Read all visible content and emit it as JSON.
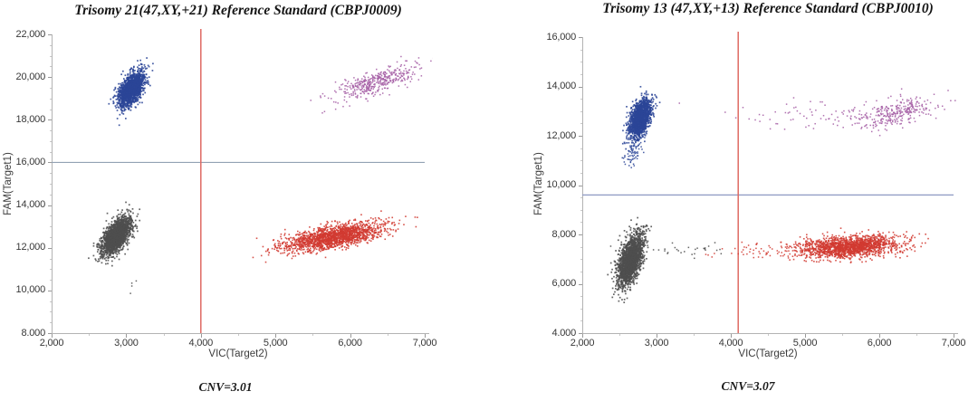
{
  "figure": {
    "background": "#ffffff",
    "description_colors": {
      "fam_positive": "#2b4597",
      "vic_positive": "#d23a31",
      "double_positive": "#a55fa5",
      "negative": "#4e4e4e",
      "vertical_threshold": "#df6a63"
    }
  },
  "chart_data": [
    {
      "type": "scatter",
      "title": "Trisomy 21(47,XY,+21) Reference Standard (CBPJ0009)",
      "annotation": "CNV=3.01",
      "xlabel": "VIC(Target2)",
      "ylabel": "FAM(Target1)",
      "xlim": [
        2000,
        7000
      ],
      "ylim": [
        8000,
        22000
      ],
      "xtick_values": [
        2000,
        3000,
        4000,
        5000,
        6000,
        7000
      ],
      "xtick_labels": [
        "2,000",
        "3,000",
        "4,000",
        "5,000",
        "6,000",
        "7,000"
      ],
      "ytick_values": [
        22000,
        20000,
        18000,
        16000,
        14000,
        12000,
        10000,
        8000
      ],
      "ytick_labels": [
        "22,000",
        "20,000",
        "18,000",
        "16,000",
        "14,000",
        "12,000",
        "10,000",
        "8.000"
      ],
      "grid": false,
      "legend": "none",
      "threshold_lines": {
        "vertical_x": 4000,
        "vertical_color": "#df6a63",
        "horizontal_y": 16000,
        "horizontal_color": "#93a2b4"
      },
      "clusters": [
        {
          "label": "fam-positive",
          "color": "#2b4597",
          "n": 1700,
          "cx": 3070,
          "cy": 19450,
          "sx": 85,
          "sy": 400,
          "rho": 0.55,
          "size": 1.7
        },
        {
          "label": "double-positive",
          "color": "#a55fa5",
          "n": 420,
          "cx": 6350,
          "cy": 19750,
          "sx": 290,
          "sy": 420,
          "rho": 0.75,
          "size": 1.5
        },
        {
          "label": "negative",
          "color": "#4e4e4e",
          "n": 2000,
          "cx": 2870,
          "cy": 12550,
          "sx": 95,
          "sy": 430,
          "rho": 0.6,
          "size": 1.7
        },
        {
          "label": "vic-positive",
          "color": "#d23a31",
          "n": 1700,
          "cx": 5780,
          "cy": 12500,
          "sx": 340,
          "sy": 340,
          "rho": 0.62,
          "size": 1.6
        },
        {
          "label": "negative-stray",
          "color": "#4e4e4e",
          "n": 4,
          "cx": 3020,
          "cy": 10250,
          "sx": 140,
          "sy": 280,
          "rho": 0,
          "size": 1.5
        }
      ]
    },
    {
      "type": "scatter",
      "title": "Trisomy 13 (47,XY,+13) Reference Standard (CBPJ0010)",
      "annotation": "CNV=3.07",
      "xlabel": "VIC(Target2)",
      "ylabel": "FAM(Target1)",
      "xlim": [
        2000,
        7000
      ],
      "ylim": [
        4000,
        16000
      ],
      "xtick_values": [
        2000,
        3000,
        4000,
        5000,
        6000,
        7000
      ],
      "xtick_labels": [
        "2,000",
        "3,000",
        "4,000",
        "5,000",
        "6,000",
        "7,000"
      ],
      "ytick_values": [
        16000,
        14000,
        12000,
        10000,
        8000,
        6000,
        4000
      ],
      "ytick_labels": [
        "16,000",
        "14,000",
        "12,000",
        "10,000",
        "8,000",
        "6,000",
        "4.000"
      ],
      "grid": false,
      "legend": "none",
      "threshold_lines": {
        "vertical_x": 4100,
        "vertical_color": "#df6a63",
        "horizontal_y": 9600,
        "horizontal_color": "#8d99c3"
      },
      "clusters": [
        {
          "label": "fam-positive",
          "color": "#2b4597",
          "n": 1500,
          "cx": 2780,
          "cy": 12700,
          "sx": 75,
          "sy": 380,
          "rho": 0.5,
          "size": 1.7
        },
        {
          "label": "fam-positive-tail",
          "color": "#2b4597",
          "n": 90,
          "cx": 2705,
          "cy": 11500,
          "sx": 65,
          "sy": 420,
          "rho": 0.6,
          "size": 1.5
        },
        {
          "label": "double-positive",
          "color": "#a55fa5",
          "n": 300,
          "cx": 6250,
          "cy": 12950,
          "sx": 270,
          "sy": 330,
          "rho": 0.55,
          "size": 1.5
        },
        {
          "label": "double-positive-sparse",
          "color": "#a55fa5",
          "n": 75,
          "cx": 5150,
          "cy": 12800,
          "sx": 620,
          "sy": 300,
          "rho": 0,
          "size": 1.5
        },
        {
          "label": "negative",
          "color": "#4e4e4e",
          "n": 2000,
          "cx": 2650,
          "cy": 6950,
          "sx": 85,
          "sy": 520,
          "rho": 0.55,
          "size": 1.7
        },
        {
          "label": "negative-sparse",
          "color": "#4e4e4e",
          "n": 30,
          "cx": 3380,
          "cy": 7330,
          "sx": 330,
          "sy": 170,
          "rho": 0,
          "size": 1.5
        },
        {
          "label": "vic-positive",
          "color": "#d23a31",
          "n": 1600,
          "cx": 5620,
          "cy": 7500,
          "sx": 330,
          "sy": 230,
          "rho": 0.25,
          "size": 1.6
        },
        {
          "label": "vic-positive-sparse",
          "color": "#d23a31",
          "n": 90,
          "cx": 4650,
          "cy": 7350,
          "sx": 430,
          "sy": 190,
          "rho": 0,
          "size": 1.5
        }
      ]
    }
  ]
}
